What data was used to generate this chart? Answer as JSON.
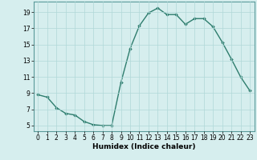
{
  "x": [
    0,
    1,
    2,
    3,
    4,
    5,
    6,
    7,
    8,
    9,
    10,
    11,
    12,
    13,
    14,
    15,
    16,
    17,
    18,
    19,
    20,
    21,
    22,
    23
  ],
  "y": [
    8.8,
    8.5,
    7.2,
    6.5,
    6.3,
    5.5,
    5.1,
    5.0,
    5.0,
    10.3,
    14.5,
    17.3,
    18.9,
    19.5,
    18.7,
    18.7,
    17.5,
    18.2,
    18.2,
    17.2,
    15.3,
    13.2,
    11.0,
    9.3
  ],
  "line_color": "#2e7d6e",
  "marker": "D",
  "marker_size": 1.8,
  "bg_color": "#d6eeee",
  "grid_color": "#b0d8d8",
  "xlabel": "Humidex (Indice chaleur)",
  "xlabel_fontsize": 6.5,
  "yticks": [
    5,
    7,
    9,
    11,
    13,
    15,
    17,
    19
  ],
  "xtick_labels": [
    "0",
    "1",
    "2",
    "3",
    "4",
    "5",
    "6",
    "7",
    "8",
    "9",
    "10",
    "11",
    "12",
    "13",
    "14",
    "15",
    "16",
    "17",
    "18",
    "19",
    "20",
    "21",
    "22",
    "23"
  ],
  "ylim": [
    4.3,
    20.3
  ],
  "xlim": [
    -0.5,
    23.5
  ],
  "tick_fontsize": 5.5,
  "linewidth": 1.0
}
